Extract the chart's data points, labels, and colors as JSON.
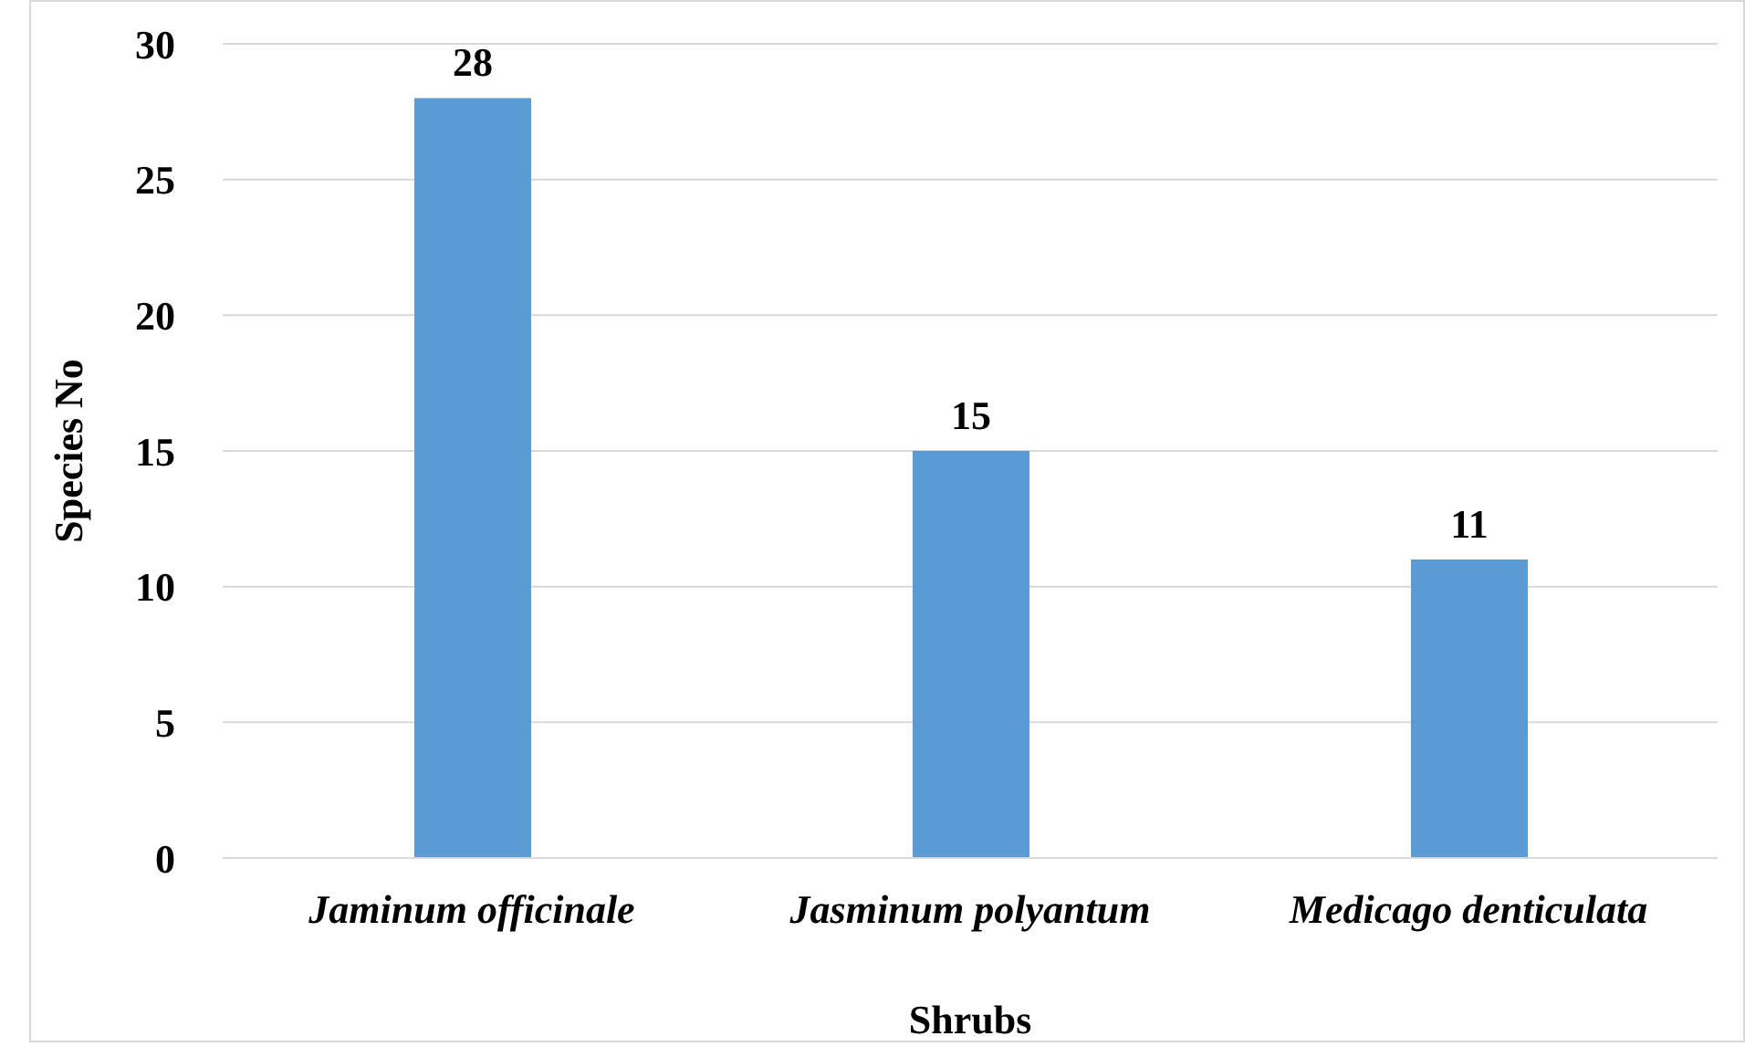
{
  "chart_data": {
    "type": "bar",
    "xlabel": "Shrubs",
    "ylabel": "Species No",
    "categories": [
      "Jaminum officinale",
      "Jasminum polyantum",
      "Medicago denticulata"
    ],
    "values": [
      28,
      15,
      11
    ],
    "color": "#5b9bd5",
    "ylim": [
      0,
      30
    ],
    "yticks": [
      0,
      5,
      10,
      15,
      20,
      25,
      30
    ],
    "grid": "y",
    "data_labels": true
  }
}
